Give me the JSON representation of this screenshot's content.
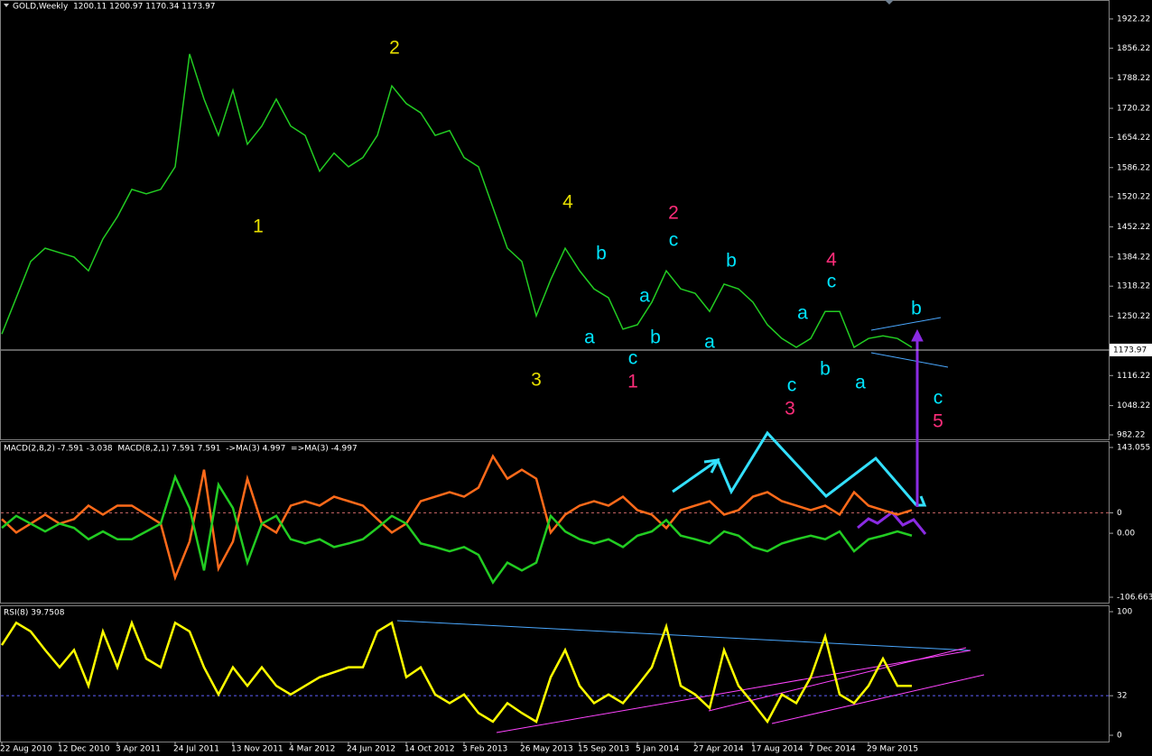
{
  "chart_data": [
    {
      "type": "line",
      "title": "GOLD,Weekly  1200.11 1200.97 1170.34 1173.97",
      "ylim": [
        972,
        1965
      ],
      "yticks": [
        1922.22,
        1856.22,
        1788.22,
        1720.22,
        1654.22,
        1586.22,
        1520.22,
        1452.22,
        1384.22,
        1318.22,
        1250.22,
        1116.22,
        1048.22,
        982.22
      ],
      "color": "#22cc22",
      "values": [
        1210,
        1292,
        1374,
        1404,
        1394,
        1384,
        1353,
        1425,
        1475,
        1537,
        1527,
        1537,
        1588,
        1843,
        1741,
        1659,
        1761,
        1639,
        1680,
        1741,
        1680,
        1659,
        1578,
        1619,
        1588,
        1609,
        1659,
        1771,
        1731,
        1710,
        1659,
        1670,
        1609,
        1588,
        1496,
        1404,
        1374,
        1251,
        1333,
        1404,
        1353,
        1312,
        1292,
        1221,
        1231,
        1282,
        1353,
        1312,
        1302,
        1261,
        1323,
        1312,
        1282,
        1231,
        1200,
        1180,
        1200,
        1261,
        1261,
        1180,
        1200,
        1206,
        1200,
        1180
      ],
      "price_line": 1173.97,
      "annotations": [
        {
          "text": "1",
          "color": "#e8e000"
        },
        {
          "text": "2",
          "color": "#e8e000"
        },
        {
          "text": "3",
          "color": "#e8e000"
        },
        {
          "text": "4",
          "color": "#e8e000"
        },
        {
          "text": "a",
          "color": "#00e5ff"
        },
        {
          "text": "b",
          "color": "#00e5ff"
        },
        {
          "text": "c",
          "color": "#00e5ff"
        },
        {
          "text": "1",
          "color": "#ff2d7a"
        },
        {
          "text": "a",
          "color": "#00e5ff"
        },
        {
          "text": "b",
          "color": "#00e5ff"
        },
        {
          "text": "c",
          "color": "#00e5ff"
        },
        {
          "text": "2",
          "color": "#ff2d7a"
        },
        {
          "text": "a",
          "color": "#00e5ff"
        },
        {
          "text": "b",
          "color": "#00e5ff"
        },
        {
          "text": "a",
          "color": "#00e5ff"
        },
        {
          "text": "c",
          "color": "#00e5ff"
        },
        {
          "text": "3",
          "color": "#ff2d7a"
        },
        {
          "text": "b",
          "color": "#00e5ff"
        },
        {
          "text": "c",
          "color": "#00e5ff"
        },
        {
          "text": "4",
          "color": "#ff2d7a"
        },
        {
          "text": "a",
          "color": "#00e5ff"
        },
        {
          "text": "b",
          "color": "#00e5ff"
        },
        {
          "text": "c",
          "color": "#00e5ff"
        },
        {
          "text": "5",
          "color": "#ff2d7a"
        }
      ]
    },
    {
      "type": "line",
      "title": "MACD(2,8,2) -7.591 -3.038  MACD(8,2,1) 7.591 7.591  ->MA(3) 4.997  =>MA(3) -4.997",
      "ylim": [
        -115.7,
        152.1
      ],
      "yticks": [
        143.055,
        {
          "value": 0,
          "label": "0.00"
        },
        -106.663
      ],
      "y2lim": [
        -100,
        78.8
      ],
      "y2ticks": [
        0
      ],
      "series": [
        {
          "color": "#ff6a1a",
          "axis": "y2",
          "values": [
            -7,
            -22,
            -12,
            -2,
            -12,
            -7,
            8,
            -2,
            8,
            8,
            -2,
            -12,
            -72,
            -32,
            48,
            -62,
            -32,
            38,
            -12,
            -22,
            8,
            13,
            8,
            18,
            13,
            8,
            -7,
            -22,
            -12,
            13,
            18,
            23,
            18,
            28,
            63,
            38,
            48,
            38,
            -22,
            -2,
            8,
            13,
            8,
            18,
            3,
            -2,
            -17,
            3,
            8,
            13,
            -2,
            3,
            18,
            23,
            13,
            8,
            3,
            8,
            -2,
            23,
            8,
            3,
            -2,
            3
          ]
        },
        {
          "color": "#22cc22",
          "values": [
            9,
            29,
            16,
            3,
            16,
            9,
            -10,
            3,
            -10,
            -10,
            3,
            16,
            94,
            42,
            -62,
            81,
            42,
            -49,
            16,
            29,
            -10,
            -17,
            -10,
            -23,
            -17,
            -10,
            9,
            29,
            16,
            -17,
            -23,
            -30,
            -23,
            -36,
            -82,
            -49,
            -62,
            -49,
            29,
            3,
            -10,
            -17,
            -10,
            -23,
            -4,
            3,
            22,
            -4,
            -10,
            -17,
            3,
            -4,
            -23,
            -30,
            -17,
            -10,
            -4,
            -10,
            3,
            -30,
            -10,
            -4,
            3,
            -4
          ]
        }
      ]
    },
    {
      "type": "line",
      "title": "RSI(8) 39.7508",
      "ylim": [
        -5.1,
        104.4
      ],
      "yticks": [
        100,
        32,
        0
      ],
      "color": "#ffff00",
      "values": [
        73,
        91,
        84,
        69,
        55,
        69,
        40,
        84,
        55,
        91,
        62,
        55,
        91,
        84,
        55,
        33,
        55,
        40,
        55,
        40,
        33,
        40,
        47,
        51,
        55,
        55,
        84,
        91,
        47,
        55,
        33,
        26,
        33,
        18,
        11,
        26,
        18,
        11,
        47,
        69,
        40,
        26,
        33,
        26,
        40,
        55,
        88,
        40,
        33,
        22,
        69,
        40,
        26,
        11,
        33,
        26,
        47,
        80,
        33,
        26,
        40,
        62,
        40,
        40
      ],
      "categories": [
        "22 Aug 2010",
        null,
        null,
        null,
        "12 Dec 2010",
        null,
        null,
        null,
        "3 Apr 2011",
        null,
        null,
        null,
        "24 Jul 2011",
        null,
        null,
        null,
        "13 Nov 2011",
        null,
        null,
        null,
        "4 Mar 2012",
        null,
        null,
        null,
        "24 Jun 2012",
        null,
        null,
        null,
        "14 Oct 2012",
        null,
        null,
        null,
        "3 Feb 2013",
        null,
        null,
        null,
        "26 May 2013",
        null,
        null,
        null,
        "15 Sep 2013",
        null,
        null,
        null,
        "5 Jan 2014",
        null,
        null,
        null,
        "27 Apr 2014",
        null,
        null,
        null,
        "17 Aug 2014",
        null,
        null,
        null,
        "7 Dec 2014",
        null,
        null,
        null,
        "29 Mar 2015",
        null,
        null,
        null
      ]
    }
  ]
}
